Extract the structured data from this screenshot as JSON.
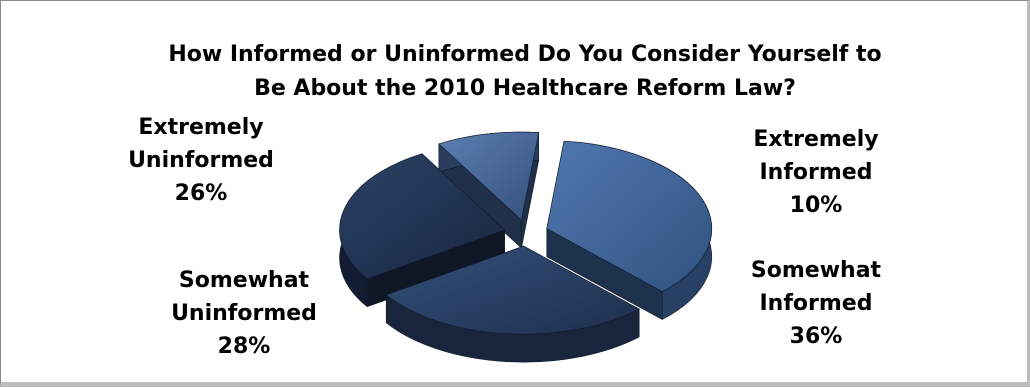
{
  "chart_data": {
    "type": "pie",
    "title_lines": [
      "How Informed or Uninformed Do You Consider Yourself to",
      "Be About the 2010 Healthcare Reform Law?"
    ],
    "slices": [
      {
        "label_lines": [
          "Extremely",
          "Informed"
        ],
        "value": 10,
        "value_label": "10%",
        "color": "#3f5f90"
      },
      {
        "label_lines": [
          "Somewhat",
          "Informed"
        ],
        "value": 36,
        "value_label": "36%",
        "color": "#3d6399"
      },
      {
        "label_lines": [
          "Somewhat",
          "Uninformed"
        ],
        "value": 28,
        "value_label": "28%",
        "color": "#26395c"
      },
      {
        "label_lines": [
          "Extremely",
          "Uninformed"
        ],
        "value": 26,
        "value_label": "26%",
        "color": "#1d2d4b"
      }
    ],
    "style": "3d-exploded"
  }
}
